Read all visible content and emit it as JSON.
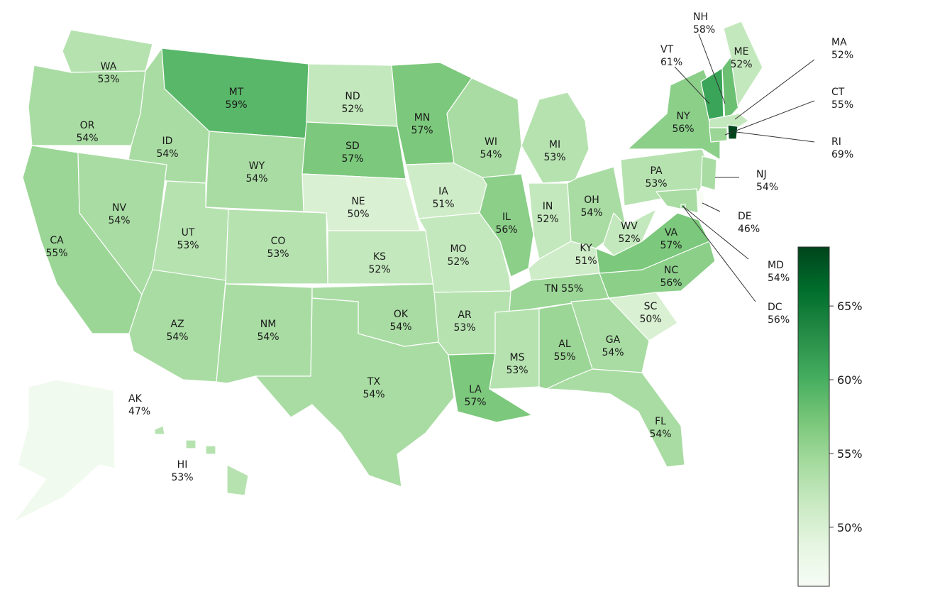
{
  "map": {
    "colorbar": {
      "min": 46,
      "max": 69,
      "ticks": [
        {
          "value": 50,
          "label": "50%"
        },
        {
          "value": 55,
          "label": "55%"
        },
        {
          "value": 60,
          "label": "60%"
        },
        {
          "value": 65,
          "label": "65%"
        }
      ],
      "colors": [
        "#f7fcf5",
        "#e5f5e0",
        "#c7e9c0",
        "#a1d99b",
        "#74c476",
        "#41ab5d",
        "#238b45",
        "#006d2c",
        "#00441b"
      ]
    },
    "states": [
      {
        "code": "WA",
        "pct": "53%",
        "value": 53
      },
      {
        "code": "OR",
        "pct": "54%",
        "value": 54
      },
      {
        "code": "CA",
        "pct": "55%",
        "value": 55
      },
      {
        "code": "ID",
        "pct": "54%",
        "value": 54
      },
      {
        "code": "NV",
        "pct": "54%",
        "value": 54
      },
      {
        "code": "MT",
        "pct": "59%",
        "value": 59
      },
      {
        "code": "WY",
        "pct": "54%",
        "value": 54
      },
      {
        "code": "UT",
        "pct": "53%",
        "value": 53
      },
      {
        "code": "AZ",
        "pct": "54%",
        "value": 54
      },
      {
        "code": "CO",
        "pct": "53%",
        "value": 53
      },
      {
        "code": "NM",
        "pct": "54%",
        "value": 54
      },
      {
        "code": "ND",
        "pct": "52%",
        "value": 52
      },
      {
        "code": "SD",
        "pct": "57%",
        "value": 57
      },
      {
        "code": "NE",
        "pct": "50%",
        "value": 50
      },
      {
        "code": "KS",
        "pct": "52%",
        "value": 52
      },
      {
        "code": "OK",
        "pct": "54%",
        "value": 54
      },
      {
        "code": "TX",
        "pct": "54%",
        "value": 54
      },
      {
        "code": "MN",
        "pct": "57%",
        "value": 57
      },
      {
        "code": "IA",
        "pct": "51%",
        "value": 51
      },
      {
        "code": "MO",
        "pct": "52%",
        "value": 52
      },
      {
        "code": "AR",
        "pct": "53%",
        "value": 53
      },
      {
        "code": "LA",
        "pct": "57%",
        "value": 57
      },
      {
        "code": "WI",
        "pct": "54%",
        "value": 54
      },
      {
        "code": "IL",
        "pct": "56%",
        "value": 56
      },
      {
        "code": "MI",
        "pct": "53%",
        "value": 53
      },
      {
        "code": "IN",
        "pct": "52%",
        "value": 52
      },
      {
        "code": "OH",
        "pct": "54%",
        "value": 54
      },
      {
        "code": "KY",
        "pct": "51%",
        "value": 51
      },
      {
        "code": "TN",
        "pct": "55%",
        "value": 55,
        "inline": "TN 55%"
      },
      {
        "code": "MS",
        "pct": "53%",
        "value": 53
      },
      {
        "code": "AL",
        "pct": "55%",
        "value": 55
      },
      {
        "code": "GA",
        "pct": "54%",
        "value": 54
      },
      {
        "code": "FL",
        "pct": "54%",
        "value": 54
      },
      {
        "code": "SC",
        "pct": "50%",
        "value": 50
      },
      {
        "code": "NC",
        "pct": "56%",
        "value": 56
      },
      {
        "code": "VA",
        "pct": "57%",
        "value": 57
      },
      {
        "code": "WV",
        "pct": "52%",
        "value": 52
      },
      {
        "code": "PA",
        "pct": "53%",
        "value": 53
      },
      {
        "code": "NY",
        "pct": "56%",
        "value": 56
      },
      {
        "code": "VT",
        "pct": "61%",
        "value": 61
      },
      {
        "code": "NH",
        "pct": "58%",
        "value": 58
      },
      {
        "code": "ME",
        "pct": "52%",
        "value": 52
      },
      {
        "code": "MA",
        "pct": "52%",
        "value": 52
      },
      {
        "code": "CT",
        "pct": "55%",
        "value": 55
      },
      {
        "code": "RI",
        "pct": "69%",
        "value": 69
      },
      {
        "code": "NJ",
        "pct": "54%",
        "value": 54
      },
      {
        "code": "DE",
        "pct": "46%",
        "value": 46
      },
      {
        "code": "MD",
        "pct": "54%",
        "value": 54
      },
      {
        "code": "DC",
        "pct": "56%",
        "value": 56
      },
      {
        "code": "AK",
        "pct": "47%",
        "value": 47
      },
      {
        "code": "HI",
        "pct": "53%",
        "value": 53
      }
    ]
  }
}
